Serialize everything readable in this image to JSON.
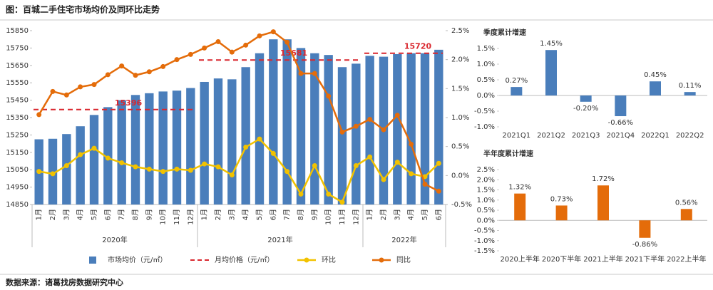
{
  "title": "图：百城二手住宅市场均价及同环比走势",
  "source": "数据来源：诸葛找房数据研究中心",
  "chart_data": [
    {
      "type": "combo",
      "categories": [
        "1月",
        "2月",
        "3月",
        "4月",
        "5月",
        "6月",
        "7月",
        "8月",
        "9月",
        "10月",
        "11月",
        "12月",
        "1月",
        "2月",
        "3月",
        "4月",
        "5月",
        "6月",
        "7月",
        "8月",
        "9月",
        "10月",
        "11月",
        "12月",
        "1月",
        "2月",
        "3月",
        "4月",
        "5月",
        "6月"
      ],
      "year_groups": [
        "2020年",
        "2021年",
        "2022年"
      ],
      "series": [
        {
          "name": "市场均价（元/㎡）",
          "type": "bar",
          "color": "#4a7ebb",
          "values": [
            15225,
            15228,
            15255,
            15300,
            15365,
            15410,
            15450,
            15480,
            15490,
            15500,
            15505,
            15520,
            15555,
            15575,
            15570,
            15640,
            15720,
            15800,
            15800,
            15750,
            15720,
            15710,
            15640,
            15660,
            15705,
            15700,
            15715,
            15720,
            15720,
            15740
          ]
        },
        {
          "name": "环比",
          "type": "line",
          "axis": "y2",
          "color": "#f2c200",
          "values": [
            0.07,
            0.03,
            0.17,
            0.36,
            0.47,
            0.3,
            0.22,
            0.15,
            0.11,
            0.07,
            0.11,
            0.09,
            0.2,
            0.15,
            0.01,
            0.49,
            0.63,
            0.38,
            0.07,
            -0.32,
            0.17,
            -0.32,
            -0.46,
            0.17,
            0.32,
            -0.07,
            0.23,
            0.03,
            -0.02,
            0.21
          ]
        },
        {
          "name": "同比",
          "type": "line",
          "axis": "y2",
          "color": "#e46c0a",
          "values": [
            1.05,
            1.45,
            1.39,
            1.53,
            1.57,
            1.74,
            1.89,
            1.73,
            1.79,
            1.88,
            2.0,
            2.09,
            2.2,
            2.31,
            2.13,
            2.25,
            2.41,
            2.48,
            2.3,
            1.76,
            1.76,
            1.37,
            0.75,
            0.85,
            0.97,
            0.79,
            1.04,
            0.54,
            -0.15,
            -0.27
          ]
        }
      ],
      "average_line": {
        "name": "月均价格（元/㎡）",
        "color": "#d9272e",
        "values": [
          15396,
          15681,
          15720
        ]
      },
      "ylim": [
        14850,
        15850
      ],
      "yticks": [
        14850,
        14950,
        15050,
        15150,
        15250,
        15350,
        15450,
        15550,
        15650,
        15750,
        15850
      ],
      "y2lim": [
        -0.5,
        2.5
      ],
      "y2ticks": [
        {
          "value": -0.5,
          "label": "-0.5%"
        },
        {
          "value": 0,
          "label": "0.0%"
        },
        {
          "value": 0.5,
          "label": "0.5%"
        },
        {
          "value": 1,
          "label": "1.0%"
        },
        {
          "value": 1.5,
          "label": "1.5%"
        },
        {
          "value": 2,
          "label": "2.0%"
        },
        {
          "value": 2.5,
          "label": "2.5%"
        }
      ]
    },
    {
      "type": "bar",
      "title": "季度累计增速",
      "color": "#4a7ebb",
      "categories": [
        "2021Q1",
        "2021Q2",
        "2021Q3",
        "2021Q4",
        "2022Q1",
        "2022Q2"
      ],
      "values": [
        0.27,
        1.45,
        -0.2,
        -0.66,
        0.45,
        0.11
      ],
      "value_labels": [
        "0.27%",
        "1.45%",
        "-0.20%",
        "-0.66%",
        "0.45%",
        "0.11%"
      ],
      "ylim": [
        -1,
        1.5
      ],
      "yticks": [
        {
          "value": -1,
          "label": "-1.0%"
        },
        {
          "value": -0.5,
          "label": "-0.5%"
        },
        {
          "value": 0,
          "label": "0.0%"
        },
        {
          "value": 0.5,
          "label": "0.5%"
        },
        {
          "value": 1,
          "label": "1.0%"
        },
        {
          "value": 1.5,
          "label": "1.5%"
        }
      ]
    },
    {
      "type": "bar",
      "title": "半年度累计增速",
      "color": "#e46c0a",
      "categories": [
        "2020上半年",
        "2020下半年",
        "2021上半年",
        "2021下半年",
        "2022上半年"
      ],
      "values": [
        1.32,
        0.73,
        1.72,
        -0.86,
        0.56
      ],
      "value_labels": [
        "1.32%",
        "0.73%",
        "1.72%",
        "-0.86%",
        "0.56%"
      ],
      "ylim": [
        -1.5,
        2.5
      ],
      "yticks": [
        {
          "value": -1.5,
          "label": "-1.5%"
        },
        {
          "value": -1,
          "label": "-1.0%"
        },
        {
          "value": -0.5,
          "label": "-0.5%"
        },
        {
          "value": 0,
          "label": "0.0%"
        },
        {
          "value": 0.5,
          "label": "0.5%"
        },
        {
          "value": 1,
          "label": "1.0%"
        },
        {
          "value": 1.5,
          "label": "1.5%"
        },
        {
          "value": 2,
          "label": "2.0%"
        },
        {
          "value": 2.5,
          "label": "2.5%"
        }
      ]
    }
  ]
}
